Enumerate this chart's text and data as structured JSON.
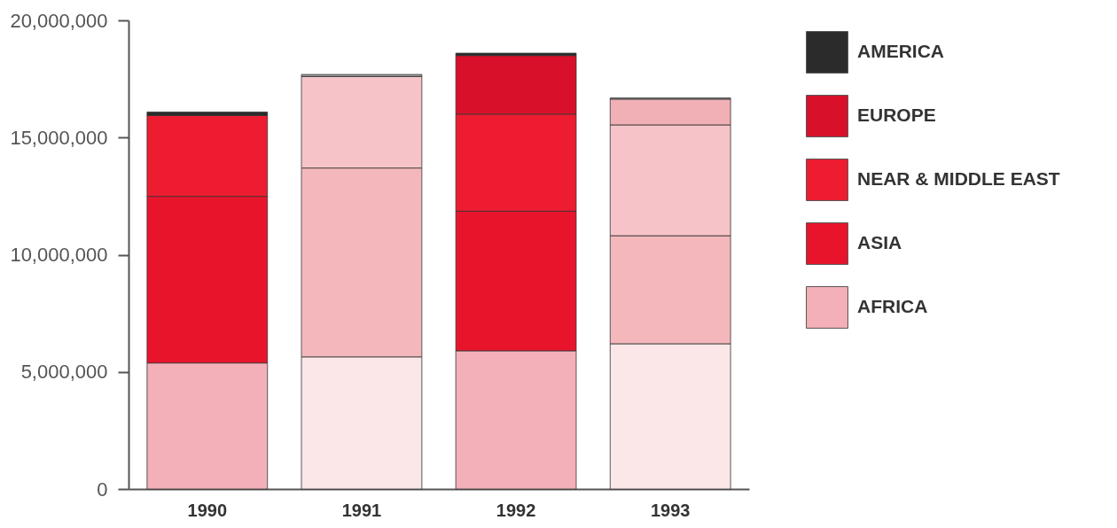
{
  "chart_data": {
    "type": "bar",
    "stacked": true,
    "categories": [
      "1990",
      "1991",
      "1992",
      "1993"
    ],
    "series": [
      {
        "name": "AFRICA",
        "color": "#f4b0b8",
        "colors": [
          "#f4b0b8",
          "#fbe6e8",
          "#f4b0b8",
          "#fbe6e8"
        ],
        "values": [
          5380000,
          5640000,
          5900000,
          6200000
        ]
      },
      {
        "name": "ASIA",
        "color": "#e8142c",
        "colors": [
          "#e8142c",
          "#f4b8bc",
          "#e8142c",
          "#f4b8bc"
        ],
        "values": [
          7110000,
          8060000,
          5960000,
          4610000
        ]
      },
      {
        "name": "NEAR & MIDDLE EAST",
        "color": "#ee1c30",
        "colors": [
          "#ee1c30",
          "#f6c4c8",
          "#ee1c30",
          "#f6c4c8"
        ],
        "values": [
          3450000,
          3900000,
          4140000,
          4730000
        ]
      },
      {
        "name": "EUROPE",
        "color": "#d8102a",
        "colors": [
          null,
          null,
          "#d8102a",
          "#f0b0b6"
        ],
        "values": [
          null,
          null,
          2500000,
          1100000
        ]
      },
      {
        "name": "AMERICA",
        "color": "#2b2b2b",
        "colors": [
          "#2b2b2b",
          "#9a9a9a",
          "#2b2b2b",
          "#9a9a9a"
        ],
        "values": [
          150000,
          90000,
          100000,
          50000
        ]
      }
    ],
    "ylim": [
      0,
      20000000
    ],
    "yticks": [
      0,
      {
        "value": 5000000,
        "label": "5,000,000"
      },
      {
        "value": 10000000,
        "label": "10,000,000"
      },
      {
        "value": 15000000,
        "label": "15,000,000"
      },
      {
        "value": 20000000,
        "label": "20,000,000"
      }
    ],
    "grid": false,
    "legend": "right"
  }
}
